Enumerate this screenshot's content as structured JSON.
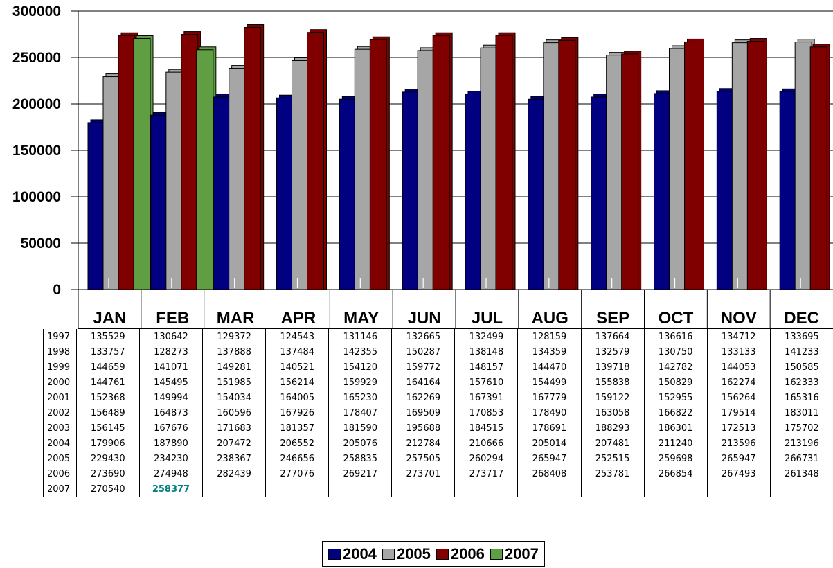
{
  "chart_data": {
    "type": "bar",
    "categories": [
      "JAN",
      "FEB",
      "MAR",
      "APR",
      "MAY",
      "JUN",
      "JUL",
      "AUG",
      "SEP",
      "OCT",
      "NOV",
      "DEC"
    ],
    "ylim": [
      0,
      300000
    ],
    "yticks": [
      "300000",
      "250000",
      "200000",
      "150000",
      "100000",
      "50000",
      "0"
    ],
    "yticks_values": [
      300000,
      250000,
      200000,
      150000,
      100000,
      50000,
      0
    ],
    "grid": true,
    "legend_position": "bottom",
    "series": [
      {
        "name": "2004",
        "color": "#000080",
        "values": [
          179906,
          187890,
          207472,
          206552,
          205076,
          212784,
          210666,
          205014,
          207481,
          211240,
          213596,
          213196
        ]
      },
      {
        "name": "2005",
        "color": "#A6A6A6",
        "values": [
          229430,
          234230,
          238367,
          246656,
          258835,
          257505,
          260294,
          265947,
          252515,
          259698,
          265947,
          266731
        ]
      },
      {
        "name": "2006",
        "color": "#800000",
        "values": [
          273690,
          274948,
          282439,
          277076,
          269217,
          273701,
          273717,
          268408,
          253781,
          266854,
          267493,
          261348
        ]
      },
      {
        "name": "2007",
        "color": "#5F9E43",
        "values": [
          270540,
          258377,
          null,
          null,
          null,
          null,
          null,
          null,
          null,
          null,
          null,
          null
        ]
      }
    ],
    "table": {
      "rows": [
        {
          "year": "1997",
          "values": [
            "135529",
            "130642",
            "129372",
            "124543",
            "131146",
            "132665",
            "132499",
            "128159",
            "137664",
            "136616",
            "134712",
            "133695"
          ]
        },
        {
          "year": "1998",
          "values": [
            "133757",
            "128273",
            "137888",
            "137484",
            "142355",
            "150287",
            "138148",
            "134359",
            "132579",
            "130750",
            "133133",
            "141233"
          ]
        },
        {
          "year": "1999",
          "values": [
            "144659",
            "141071",
            "149281",
            "140521",
            "154120",
            "159772",
            "148157",
            "144470",
            "139718",
            "142782",
            "144053",
            "150585"
          ]
        },
        {
          "year": "2000",
          "values": [
            "144761",
            "145495",
            "151985",
            "156214",
            "159929",
            "164164",
            "157610",
            "154499",
            "155838",
            "150829",
            "162274",
            "162333"
          ]
        },
        {
          "year": "2001",
          "values": [
            "152368",
            "149994",
            "154034",
            "164005",
            "165230",
            "162269",
            "167391",
            "167779",
            "159122",
            "152955",
            "156264",
            "165316"
          ]
        },
        {
          "year": "2002",
          "values": [
            "156489",
            "164873",
            "160596",
            "167926",
            "178407",
            "169509",
            "170853",
            "178490",
            "163058",
            "166822",
            "179514",
            "183011"
          ]
        },
        {
          "year": "2003",
          "values": [
            "156145",
            "167676",
            "171683",
            "181357",
            "181590",
            "195688",
            "184515",
            "178691",
            "188293",
            "186301",
            "172513",
            "175702"
          ]
        },
        {
          "year": "2004",
          "values": [
            "179906",
            "187890",
            "207472",
            "206552",
            "205076",
            "212784",
            "210666",
            "205014",
            "207481",
            "211240",
            "213596",
            "213196"
          ]
        },
        {
          "year": "2005",
          "values": [
            "229430",
            "234230",
            "238367",
            "246656",
            "258835",
            "257505",
            "260294",
            "265947",
            "252515",
            "259698",
            "265947",
            "266731"
          ]
        },
        {
          "year": "2006",
          "values": [
            "273690",
            "274948",
            "282439",
            "277076",
            "269217",
            "273701",
            "273717",
            "268408",
            "253781",
            "266854",
            "267493",
            "261348"
          ]
        },
        {
          "year": "2007",
          "values": [
            "270540",
            "258377",
            "",
            "",
            "",
            "",
            "",
            "",
            "",
            "",
            "",
            ""
          ]
        }
      ],
      "highlight": {
        "row": 10,
        "col": 1,
        "color": "#008080"
      }
    }
  }
}
